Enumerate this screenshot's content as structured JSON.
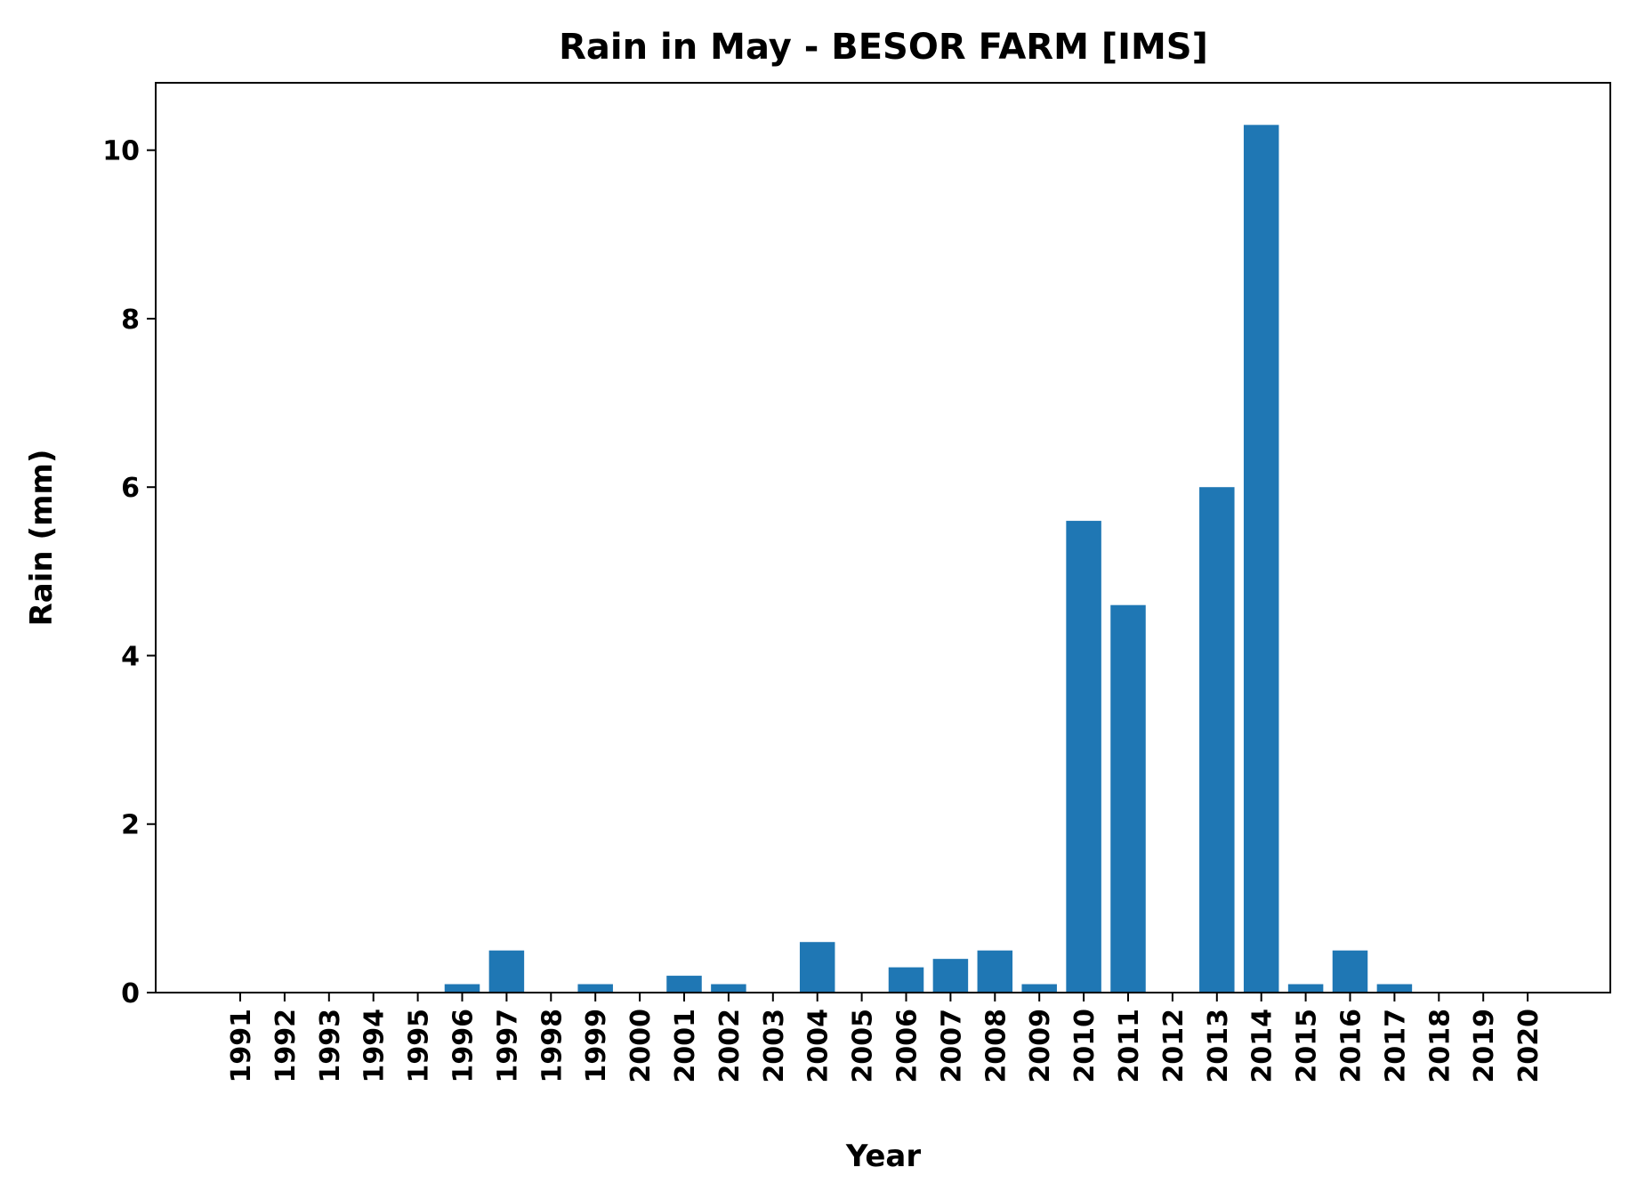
{
  "chart_data": {
    "type": "bar",
    "title": "Rain in May - BESOR FARM [IMS]",
    "xlabel": "Year",
    "ylabel": "Rain (mm)",
    "ylim": [
      0,
      10.8
    ],
    "yticks": [
      0,
      2,
      4,
      6,
      8,
      10
    ],
    "grid": false,
    "bar_color": "#1f77b4",
    "categories": [
      "1991",
      "1992",
      "1993",
      "1994",
      "1995",
      "1996",
      "1997",
      "1998",
      "1999",
      "2000",
      "2001",
      "2002",
      "2003",
      "2004",
      "2005",
      "2006",
      "2007",
      "2008",
      "2009",
      "2010",
      "2011",
      "2012",
      "2013",
      "2014",
      "2015",
      "2016",
      "2017",
      "2018",
      "2019",
      "2020"
    ],
    "values": [
      0,
      0,
      0,
      0,
      0,
      0.1,
      0.5,
      0,
      0.1,
      0,
      0.2,
      0.1,
      0,
      0.6,
      0,
      0.3,
      0.4,
      0.5,
      0.1,
      5.6,
      4.6,
      0,
      6.0,
      10.3,
      0.1,
      0.5,
      0.1,
      0,
      0,
      0
    ]
  }
}
